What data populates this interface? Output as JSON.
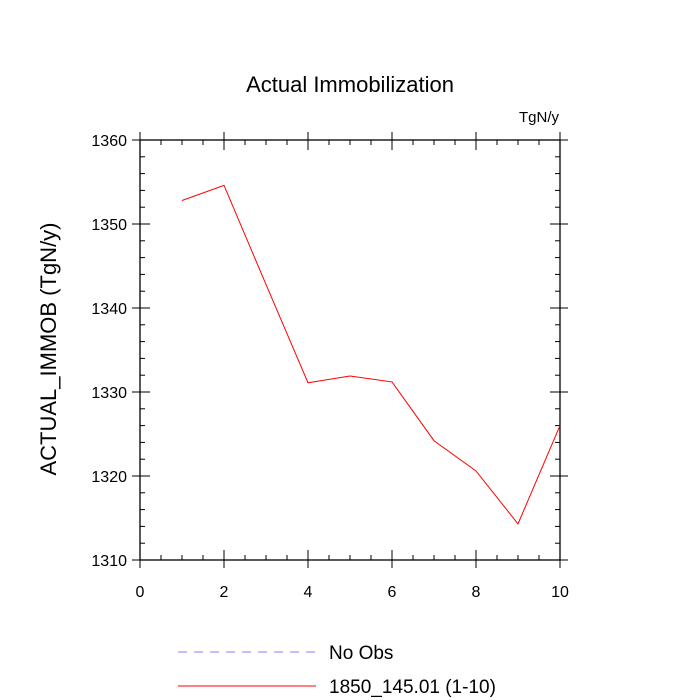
{
  "chart_data": {
    "type": "line",
    "title": "Actual Immobilization",
    "units_label": "TgN/y",
    "ylabel": "ACTUAL_IMMOB  (TgN/y)",
    "xlabel": "",
    "xlim": [
      0,
      10
    ],
    "ylim": [
      1310,
      1360
    ],
    "x_ticks": [
      0,
      2,
      4,
      6,
      8,
      10
    ],
    "y_ticks": [
      1310,
      1320,
      1330,
      1340,
      1350,
      1360
    ],
    "grid": false,
    "legend_position": "bottom",
    "series": [
      {
        "name": "1850_145.01 (1-10)",
        "color": "#ff0000",
        "style": "solid",
        "x": [
          1,
          2,
          3,
          4,
          5,
          6,
          7,
          8,
          9,
          10
        ],
        "y": [
          1352.8,
          1354.6,
          1342.8,
          1331.1,
          1331.9,
          1331.2,
          1324.2,
          1320.6,
          1314.3,
          1326.0
        ]
      }
    ],
    "legend": [
      {
        "label": "No Obs",
        "color": "#8080ff",
        "style": "dashed"
      },
      {
        "label": "1850_145.01 (1-10)",
        "color": "#ff0000",
        "style": "solid"
      }
    ]
  }
}
